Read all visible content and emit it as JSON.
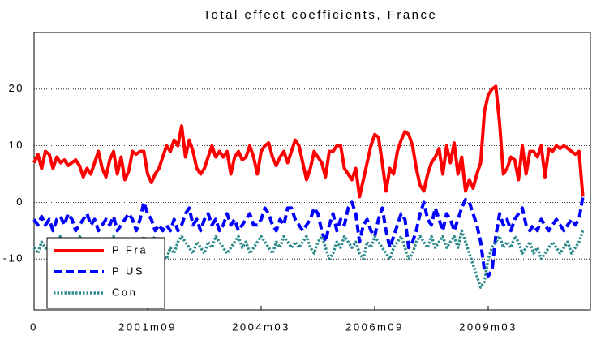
{
  "chart_data": {
    "type": "line",
    "title": "Total effect coefficients, France",
    "categories": [
      "0",
      null,
      null,
      null,
      null,
      null,
      null,
      null,
      null,
      null,
      null,
      null,
      null,
      null,
      null,
      null,
      null,
      null,
      null,
      null,
      null,
      null,
      null,
      null,
      null,
      null,
      null,
      null,
      null,
      null,
      "2001m09",
      null,
      null,
      null,
      null,
      null,
      null,
      null,
      null,
      null,
      null,
      null,
      null,
      null,
      null,
      null,
      null,
      null,
      null,
      null,
      null,
      null,
      null,
      null,
      null,
      null,
      null,
      null,
      null,
      null,
      "2004m03",
      null,
      null,
      null,
      null,
      null,
      null,
      null,
      null,
      null,
      null,
      null,
      null,
      null,
      null,
      null,
      null,
      null,
      null,
      null,
      null,
      null,
      null,
      null,
      null,
      null,
      null,
      null,
      null,
      null,
      "2006m09",
      null,
      null,
      null,
      null,
      null,
      null,
      null,
      null,
      null,
      null,
      null,
      null,
      null,
      null,
      null,
      null,
      null,
      null,
      null,
      null,
      null,
      null,
      null,
      null,
      null,
      null,
      null,
      null,
      null,
      "2009m03",
      null,
      null,
      null,
      null,
      null,
      null,
      null,
      null,
      null,
      null,
      null,
      null,
      null,
      null,
      null,
      null,
      null,
      null,
      null,
      null,
      null,
      null,
      null,
      null,
      null
    ],
    "series": [
      {
        "name": "P Fra",
        "color": "#ff0000",
        "style": "solid",
        "values": [
          7,
          8.5,
          6,
          9,
          8.5,
          6,
          8,
          7,
          7.5,
          6.5,
          7,
          7.5,
          6.5,
          4.5,
          6,
          5,
          7,
          9,
          6,
          4.5,
          7.5,
          9,
          5,
          8,
          4,
          5.5,
          9,
          8.5,
          9,
          9,
          5,
          3.5,
          5,
          6,
          8,
          10,
          9,
          11,
          10,
          13.5,
          8,
          11,
          9,
          6,
          5,
          6,
          8,
          10,
          8,
          9,
          8,
          9,
          5,
          8,
          9,
          7.5,
          8,
          10,
          8,
          5,
          9,
          10,
          10.5,
          8,
          6.5,
          8,
          9,
          7,
          9,
          11,
          10,
          7,
          4,
          6,
          9,
          8,
          7,
          4.5,
          9,
          9,
          10,
          10,
          6,
          5,
          4,
          6,
          1,
          4,
          7,
          10,
          12,
          11.5,
          7,
          2,
          6,
          5,
          9,
          11,
          12.5,
          12,
          10,
          6,
          3,
          2,
          5,
          7,
          8,
          9.5,
          5,
          10,
          7,
          10.5,
          5,
          8,
          2,
          4,
          2.5,
          5,
          7,
          16,
          19,
          20,
          20.5,
          14,
          5,
          6,
          8,
          7.5,
          4,
          10,
          5,
          9,
          9,
          8,
          10,
          4.5,
          9.5,
          9,
          10,
          9.5,
          10,
          9.5,
          9,
          8.5,
          9,
          1
        ]
      },
      {
        "name": "P US",
        "color": "#0000ff",
        "style": "dashed",
        "values": [
          -3,
          -4,
          -2.5,
          -4,
          -3,
          -5,
          -3,
          -2.5,
          -4,
          -2,
          -3,
          -5,
          -4,
          -3,
          -2,
          -4,
          -3,
          -5,
          -4,
          -3,
          -4,
          -2.5,
          -5,
          -4,
          -3,
          -2,
          -3,
          -5,
          -3,
          0,
          -2,
          -3,
          -5,
          -4,
          -5,
          -4,
          -5,
          -3,
          -5,
          -4,
          -2,
          -1,
          -4,
          -3,
          -5,
          -3,
          -2,
          -4,
          -3,
          -5,
          -4,
          -2,
          -4,
          -3,
          -5,
          -4,
          -3,
          -2,
          -4,
          -4,
          -3,
          -1,
          -2,
          -4,
          -5,
          -3,
          -4,
          -1,
          -1,
          -3,
          -4,
          -5,
          -4,
          -3,
          -1,
          -2,
          -5,
          -7,
          -4,
          -2,
          -5,
          -3,
          -4,
          -1,
          0,
          -2,
          -7,
          -4,
          -3,
          -5,
          -6,
          -3,
          -1,
          -5,
          -8,
          -6,
          -4,
          -2,
          -3,
          -8,
          -7,
          -5,
          -2,
          0,
          -3,
          -4,
          -1,
          -3,
          -5,
          -2,
          -3,
          -5,
          -3,
          -1,
          0.5,
          0,
          -2,
          -4,
          -7,
          -12,
          -13,
          -12,
          -6,
          -2,
          -4,
          -3,
          -5,
          -3,
          -2,
          -1,
          -4,
          -5,
          -4,
          -5,
          -3,
          -4,
          -5,
          -4,
          -3,
          -4,
          -5,
          -4,
          -3,
          -4,
          -3,
          1
        ]
      },
      {
        "name": "Con",
        "color": "#2e8b8b",
        "style": "dotted",
        "values": [
          -8,
          -9,
          -7,
          -8,
          -9,
          -8,
          -7,
          -6,
          -8,
          -7,
          -9,
          -8,
          -6,
          -7,
          -8,
          -9,
          -7,
          -8,
          -9,
          -8,
          -7,
          -6,
          -8,
          -9,
          -7,
          -8,
          -7,
          -9,
          -8,
          -6,
          -8,
          -7,
          -6,
          -8,
          -9,
          -10,
          -8,
          -9,
          -7,
          -6,
          -7,
          -8,
          -9,
          -7,
          -8,
          -9,
          -7,
          -8,
          -6,
          -7,
          -8,
          -9,
          -8,
          -7,
          -6,
          -8,
          -7,
          -9,
          -8,
          -7,
          -6,
          -7,
          -8,
          -9,
          -7,
          -8,
          -6,
          -7,
          -8,
          -7,
          -8,
          -7,
          -6,
          -8,
          -9,
          -7,
          -6,
          -8,
          -10,
          -9,
          -7,
          -8,
          -6,
          -7,
          -8,
          -7,
          -9,
          -10,
          -7,
          -8,
          -6,
          -7,
          -8,
          -9,
          -10,
          -8,
          -7,
          -6,
          -8,
          -10,
          -9,
          -7,
          -6,
          -7,
          -8,
          -6,
          -8,
          -7,
          -6,
          -8,
          -7,
          -6,
          -8,
          -5,
          -7,
          -9,
          -11,
          -13,
          -15,
          -14,
          -10,
          -8,
          -7,
          -6,
          -8,
          -7,
          -8,
          -6,
          -7,
          -9,
          -8,
          -7,
          -9,
          -8,
          -10,
          -9,
          -8,
          -7,
          -8,
          -9,
          -8,
          -7,
          -9,
          -8,
          -7,
          -5
        ]
      }
    ],
    "ylim": [
      -19,
      30
    ],
    "yticks": [
      -10,
      0,
      10,
      20
    ],
    "grid": true,
    "legend": "lower left"
  }
}
